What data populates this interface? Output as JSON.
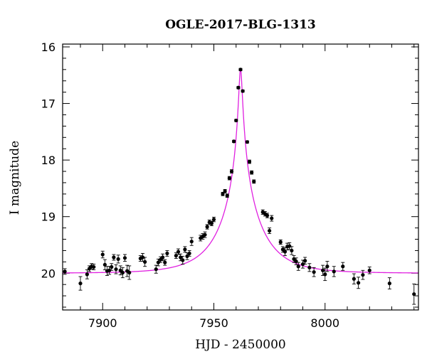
{
  "chart_data": {
    "type": "scatter",
    "title": "OGLE-2017-BLG-1313",
    "xlabel": "HJD - 2450000",
    "ylabel": "I magnitude",
    "xlim": [
      7882,
      8042
    ],
    "ylim": [
      20.65,
      15.95
    ],
    "y_inverted": true,
    "xticks": [
      7900,
      7950,
      8000
    ],
    "yticks": [
      16,
      17,
      18,
      19,
      20
    ],
    "grid": false,
    "legend": "none",
    "colors": {
      "points": "#000000",
      "model": "#e020e0"
    },
    "model": {
      "t0": 7962,
      "peak_mag": 16.38,
      "base_mag": 20.0,
      "u0": 0.038,
      "tE": 18
    },
    "series": [
      {
        "kind": "observations",
        "x": [
          7883,
          7890,
          7893,
          7894,
          7895,
          7896,
          7900,
          7901,
          7902,
          7903,
          7904,
          7905,
          7906,
          7907,
          7908,
          7909,
          7910,
          7911,
          7912,
          7917,
          7918,
          7919,
          7924,
          7925,
          7926,
          7927,
          7928,
          7929,
          7933,
          7934,
          7935,
          7936,
          7937,
          7938,
          7939,
          7940,
          7944,
          7945,
          7946,
          7947,
          7948,
          7949,
          7950,
          7954,
          7955,
          7956,
          7957,
          7958,
          7959,
          7960,
          7961,
          7962,
          7963,
          7965,
          7966,
          7967,
          7968,
          7972,
          7973,
          7974,
          7975,
          7976,
          7980,
          7981,
          7982,
          7983,
          7984,
          7985,
          7986,
          7987,
          7988,
          7990,
          7991,
          7993,
          7995,
          7999,
          8000,
          8001,
          8004,
          8008,
          8013,
          8015,
          8017,
          8020,
          8029,
          8040
        ],
        "y": [
          19.97,
          20.18,
          20.02,
          19.92,
          19.88,
          19.89,
          19.67,
          19.85,
          19.96,
          19.95,
          19.89,
          19.72,
          19.93,
          19.75,
          19.95,
          19.99,
          19.73,
          19.96,
          19.99,
          19.74,
          19.72,
          19.8,
          19.93,
          19.81,
          19.76,
          19.72,
          19.81,
          19.65,
          19.69,
          19.62,
          19.72,
          19.77,
          19.58,
          19.7,
          19.65,
          19.44,
          19.38,
          19.35,
          19.32,
          19.18,
          19.1,
          19.12,
          19.05,
          18.6,
          18.55,
          18.63,
          18.32,
          18.2,
          17.67,
          17.3,
          16.72,
          16.4,
          16.78,
          17.68,
          18.03,
          18.22,
          18.38,
          18.92,
          18.95,
          18.98,
          19.25,
          19.03,
          19.45,
          19.58,
          19.62,
          19.53,
          19.52,
          19.6,
          19.75,
          19.79,
          19.88,
          19.84,
          19.78,
          19.9,
          19.98,
          19.95,
          20.02,
          19.88,
          19.97,
          19.88,
          20.1,
          20.17,
          20.03,
          19.95,
          20.18,
          20.37
        ],
        "err": [
          0.05,
          0.12,
          0.08,
          0.05,
          0.05,
          0.05,
          0.06,
          0.09,
          0.08,
          0.07,
          0.06,
          0.05,
          0.08,
          0.07,
          0.08,
          0.09,
          0.06,
          0.1,
          0.12,
          0.05,
          0.07,
          0.08,
          0.07,
          0.06,
          0.05,
          0.06,
          0.05,
          0.05,
          0.05,
          0.05,
          0.06,
          0.07,
          0.05,
          0.06,
          0.05,
          0.07,
          0.05,
          0.05,
          0.05,
          0.04,
          0.04,
          0.04,
          0.04,
          0.03,
          0.03,
          0.03,
          0.03,
          0.03,
          0.02,
          0.02,
          0.02,
          0.02,
          0.02,
          0.02,
          0.03,
          0.03,
          0.03,
          0.04,
          0.04,
          0.04,
          0.05,
          0.05,
          0.04,
          0.05,
          0.07,
          0.06,
          0.06,
          0.07,
          0.06,
          0.06,
          0.07,
          0.07,
          0.06,
          0.07,
          0.08,
          0.09,
          0.11,
          0.09,
          0.09,
          0.07,
          0.09,
          0.1,
          0.08,
          0.06,
          0.1,
          0.18
        ]
      }
    ]
  }
}
